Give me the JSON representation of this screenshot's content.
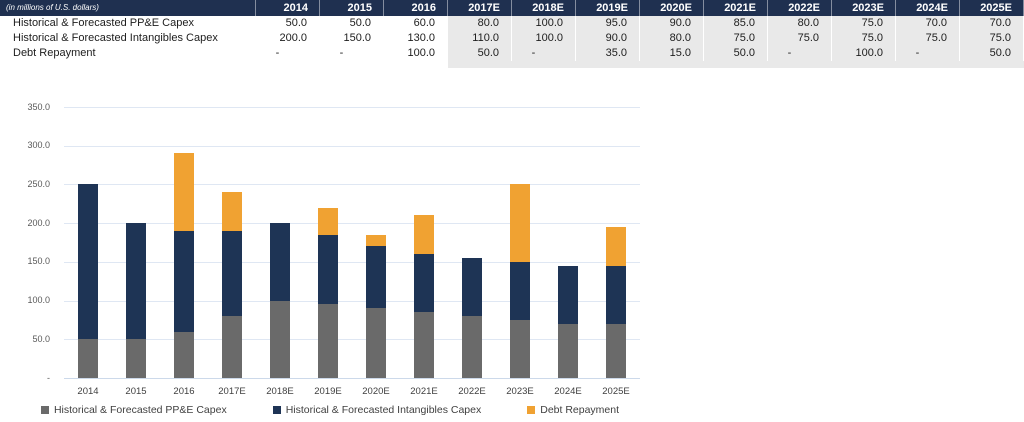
{
  "table": {
    "unit_label": "(in millions of U.S. dollars)",
    "columns": [
      "2014",
      "2015",
      "2016",
      "2017E",
      "2018E",
      "2019E",
      "2020E",
      "2021E",
      "2022E",
      "2023E",
      "2024E",
      "2025E"
    ],
    "forecast_start_index": 3,
    "rows": [
      {
        "label": "Historical & Forecasted PP&E Capex",
        "values": [
          "50.0",
          "50.0",
          "60.0",
          "80.0",
          "100.0",
          "95.0",
          "90.0",
          "85.0",
          "80.0",
          "75.0",
          "70.0",
          "70.0"
        ]
      },
      {
        "label": "Historical & Forecasted Intangibles Capex",
        "values": [
          "200.0",
          "150.0",
          "130.0",
          "110.0",
          "100.0",
          "90.0",
          "80.0",
          "75.0",
          "75.0",
          "75.0",
          "75.0",
          "75.0"
        ]
      },
      {
        "label": "Debt Repayment",
        "values": [
          "-",
          "-",
          "100.0",
          "50.0",
          "-",
          "35.0",
          "15.0",
          "50.0",
          "-",
          "100.0",
          "-",
          "50.0"
        ]
      }
    ]
  },
  "chart_data": {
    "type": "bar",
    "stacked": true,
    "categories": [
      "2014",
      "2015",
      "2016",
      "2017E",
      "2018E",
      "2019E",
      "2020E",
      "2021E",
      "2022E",
      "2023E",
      "2024E",
      "2025E"
    ],
    "series": [
      {
        "name": "Historical & Forecasted PP&E Capex",
        "color": "#6a6a6a",
        "values": [
          50,
          50,
          60,
          80,
          100,
          95,
          90,
          85,
          80,
          75,
          70,
          70
        ]
      },
      {
        "name": "Historical & Forecasted Intangibles Capex",
        "color": "#1e3455",
        "values": [
          200,
          150,
          130,
          110,
          100,
          90,
          80,
          75,
          75,
          75,
          75,
          75
        ]
      },
      {
        "name": "Debt Repayment",
        "color": "#f0a232",
        "values": [
          0,
          0,
          100,
          50,
          0,
          35,
          15,
          50,
          0,
          100,
          0,
          50
        ]
      }
    ],
    "xlabel": "",
    "ylabel": "",
    "ylim": [
      0,
      350
    ],
    "ytick_interval": 50,
    "ytick_labels": [
      "-",
      "50.0",
      "100.0",
      "150.0",
      "200.0",
      "250.0",
      "300.0",
      "350.0"
    ],
    "grid": true,
    "legend_position": "bottom"
  },
  "colors": {
    "table_header_bg": "#1f3050",
    "forecast_shade": "#e9e9e9",
    "gridline": "#dfe7f3",
    "axis_line": "#ccd9ea",
    "ytick_text": "#595959",
    "xtick_text": "#404040"
  }
}
